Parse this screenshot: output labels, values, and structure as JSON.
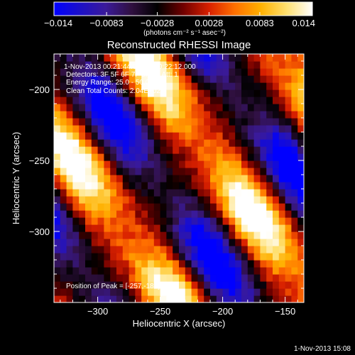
{
  "chart_data": {
    "type": "heatmap",
    "title": "Reconstructed RHESSI Image",
    "xlabel": "Heliocentric X (arcsec)",
    "ylabel": "Heliocentric Y (arcsec)",
    "xlim": [
      -335,
      -135
    ],
    "ylim": [
      -350,
      -175
    ],
    "x_ticks": [
      -300,
      -250,
      -200,
      -150
    ],
    "x_tick_labels": [
      "−300",
      "−250",
      "−200",
      "−150"
    ],
    "y_ticks": [
      -200,
      -250,
      -300
    ],
    "y_tick_labels": [
      "−200",
      "−250",
      "−300"
    ],
    "colorbar": {
      "range": [
        -0.014,
        0.014
      ],
      "ticks": [
        -0.014,
        -0.0083,
        -0.0028,
        0.0028,
        0.0083,
        0.014
      ],
      "tick_labels": [
        "−0.014",
        "−0.0083",
        "−0.0028",
        "0.0028",
        "0.0083",
        "0.014"
      ],
      "unit_label": "(photons cm⁻² s⁻¹ asec⁻²)",
      "colormap": [
        "#0000ff",
        "#1c10c8",
        "#3a1a9a",
        "#301040",
        "#000000",
        "#700000",
        "#d82000",
        "#ff7000",
        "#ffb000",
        "#ffe070",
        "#ffffff"
      ]
    },
    "info_lines": [
      "1-Nov-2013 00:21:44.000 to 00:22:12.000",
      "Detectors: 3F 5F 6F 7F 8F 9F  Att: 1",
      "Energy Range: 25.0 - 50.0 keV",
      "Clean     Total Counts: 2.04E+02"
    ],
    "peak_label": "Position of Peak = [-257,-188]",
    "peak": [
      -257,
      -188
    ],
    "pattern": {
      "type": "fringe",
      "k1": [
        0.0554,
        0.0453
      ],
      "k2": [
        0.0345,
        -0.0345
      ],
      "mod_amplitude": 0.22,
      "noise_amplitude": 0.12,
      "cell_arcsec": 5
    }
  },
  "footer_timestamp": "1-Nov-2013 15:08"
}
